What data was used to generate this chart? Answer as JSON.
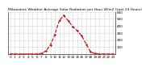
{
  "title": "Milwaukee Weather Average Solar Radiation per Hour W/m2 (Last 24 Hours)",
  "hours": [
    0,
    1,
    2,
    3,
    4,
    5,
    6,
    7,
    8,
    9,
    10,
    11,
    12,
    13,
    14,
    15,
    16,
    17,
    18,
    19,
    20,
    21,
    22,
    23
  ],
  "values": [
    0,
    0,
    0,
    0,
    0,
    0,
    1,
    10,
    45,
    130,
    280,
    480,
    550,
    470,
    390,
    330,
    260,
    140,
    30,
    5,
    1,
    0,
    0,
    0
  ],
  "line_color": "#cc0000",
  "bg_color": "#ffffff",
  "grid_color": "#999999",
  "ylim": [
    0,
    600
  ],
  "xlim": [
    -0.5,
    23.5
  ],
  "yticks": [
    100,
    200,
    300,
    400,
    500,
    600
  ],
  "xticks": [
    0,
    1,
    2,
    3,
    4,
    5,
    6,
    7,
    8,
    9,
    10,
    11,
    12,
    13,
    14,
    15,
    16,
    17,
    18,
    19,
    20,
    21,
    22,
    23
  ],
  "title_fontsize": 3.2,
  "tick_fontsize": 3.0,
  "line_width": 0.8
}
